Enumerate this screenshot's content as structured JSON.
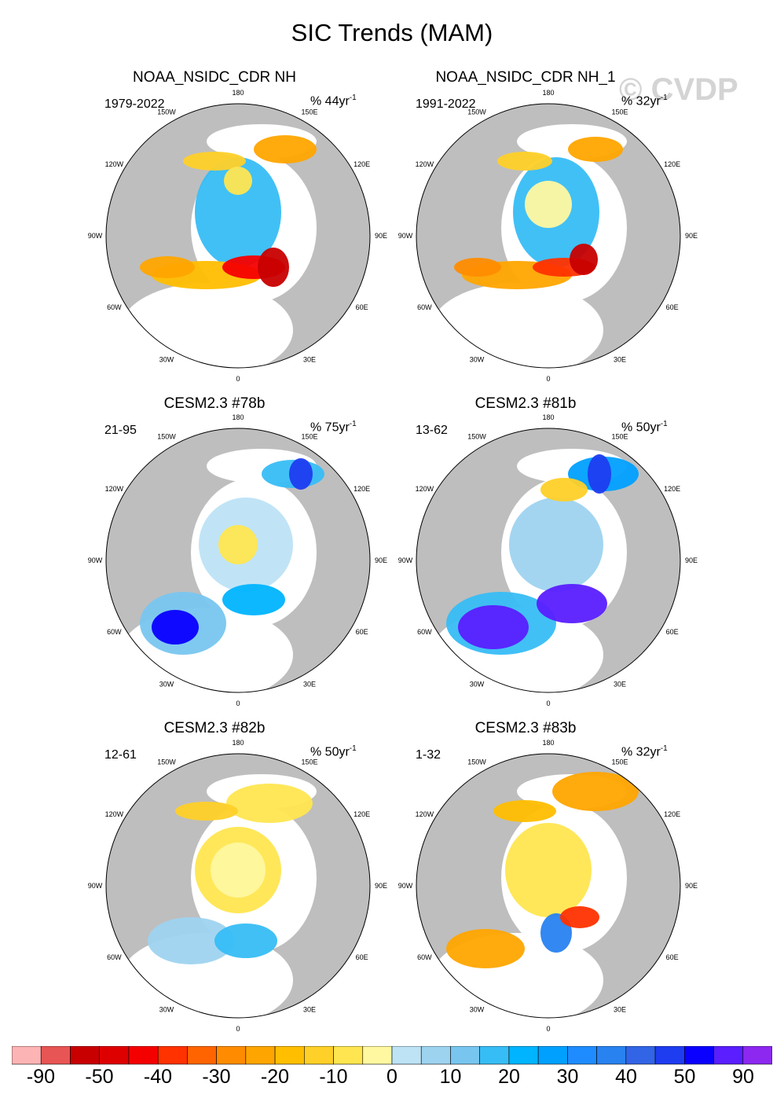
{
  "figure": {
    "title": "SIC Trends (MAM)",
    "watermark": "© CVDP"
  },
  "panels": [
    {
      "title": "NOAA_NSIDC_CDR NH",
      "period": "1979-2022",
      "units": "% 44yr",
      "units_exp": "-1"
    },
    {
      "title": "NOAA_NSIDC_CDR NH_1",
      "period": "1991-2022",
      "units": "% 32yr",
      "units_exp": "-1"
    },
    {
      "title": "CESM2.3 #78b",
      "period": "21-95",
      "units": "% 75yr",
      "units_exp": "-1"
    },
    {
      "title": "CESM2.3 #81b",
      "period": "13-62",
      "units": "% 50yr",
      "units_exp": "-1"
    },
    {
      "title": "CESM2.3 #82b",
      "period": "12-61",
      "units": "% 50yr",
      "units_exp": "-1"
    },
    {
      "title": "CESM2.3 #83b",
      "period": "1-32",
      "units": "% 32yr",
      "units_exp": "-1"
    }
  ],
  "meridian_labels": [
    "180",
    "150E",
    "120E",
    "90E",
    "60E",
    "30E",
    "0",
    "30W",
    "60W",
    "90W",
    "120W",
    "150W"
  ],
  "colorbar": {
    "colors": [
      "#fdb4b4",
      "#e85555",
      "#c80000",
      "#de0000",
      "#f50000",
      "#ff3200",
      "#ff6400",
      "#ff8c00",
      "#ffa500",
      "#ffbe00",
      "#ffd028",
      "#ffe650",
      "#fff8a0",
      "#bde3f5",
      "#9ed3f0",
      "#78c6f0",
      "#37bdf5",
      "#00b4ff",
      "#00a0ff",
      "#1e8cff",
      "#2882f0",
      "#3264e6",
      "#1e3cf0",
      "#0a00ff",
      "#5a1eff",
      "#8c28f0"
    ],
    "tick_labels": [
      "-90",
      "-50",
      "-40",
      "-30",
      "-20",
      "-10",
      "0",
      "10",
      "20",
      "30",
      "40",
      "50",
      "90"
    ]
  }
}
